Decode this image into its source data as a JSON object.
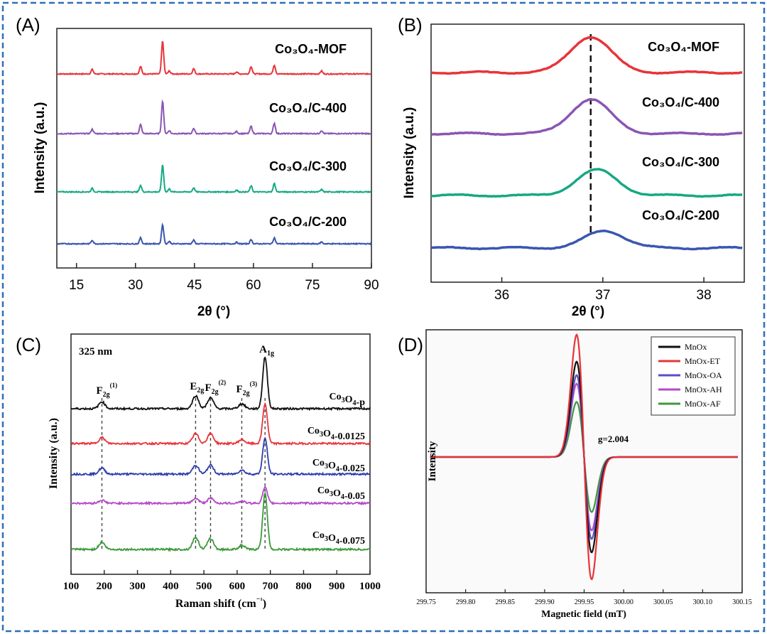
{
  "colors": {
    "frame": "#2f6fb7",
    "red": "#e8343a",
    "purple": "#8a55b5",
    "teal": "#17a884",
    "blue": "#3a56b0",
    "black": "#111111",
    "green": "#3c9a3a",
    "magenta": "#b449c7",
    "raman_blue": "#2d3cae",
    "epr_blue": "#5a4fc8"
  },
  "chart_data": [
    {
      "panel": "(A)",
      "type": "line",
      "xlabel": "2θ (°)",
      "ylabel": "Intensity (a.u.)",
      "xlim": [
        10,
        90
      ],
      "xticks": [
        15,
        30,
        45,
        60,
        75,
        90
      ],
      "grid": false,
      "peaks": [
        19,
        31.3,
        36.9,
        38.6,
        44.8,
        55.7,
        59.4,
        65.3,
        77.3
      ],
      "series": [
        {
          "name": "Co₃O₄-MOF",
          "color": "red",
          "heights": [
            1.5,
            2.5,
            11,
            1,
            1.8,
            0.7,
            2.5,
            3,
            1
          ]
        },
        {
          "name": "Co₃O₄/C-400",
          "color": "purple",
          "heights": [
            1.5,
            3,
            11,
            1,
            1.8,
            0.7,
            2.5,
            3.5,
            1
          ]
        },
        {
          "name": "Co₃O₄/C-300",
          "color": "teal",
          "heights": [
            1.2,
            2.2,
            9,
            1,
            1.4,
            0.6,
            2,
            2.8,
            0.8
          ]
        },
        {
          "name": "Co₃O₄/C-200",
          "color": "blue",
          "heights": [
            1.2,
            2,
            6.5,
            0.8,
            1.2,
            0.5,
            1.4,
            2,
            0.6
          ]
        }
      ]
    },
    {
      "panel": "(B)",
      "type": "line",
      "xlabel": "2θ (°)",
      "ylabel": "Intensity (a.u.)",
      "xlim": [
        35.3,
        38.4
      ],
      "xticks": [
        36,
        37,
        38
      ],
      "reference_line_x": 36.88,
      "grid": false,
      "series": [
        {
          "name": "Co₃O₄-MOF",
          "color": "red",
          "peak_x": 36.88,
          "height": 2.1
        },
        {
          "name": "Co₃O₄/C-400",
          "color": "purple",
          "peak_x": 36.88,
          "height": 2.0
        },
        {
          "name": "Co₃O₄/C-300",
          "color": "teal",
          "peak_x": 36.94,
          "height": 1.5
        },
        {
          "name": "Co₃O₄/C-200",
          "color": "blue",
          "peak_x": 37.02,
          "height": 1.0
        }
      ]
    },
    {
      "panel": "(C)",
      "type": "line",
      "xlabel": "Raman shift (cm⁻¹)",
      "ylabel": "Intensity (a.u.)",
      "xlim": [
        100,
        1000
      ],
      "xticks": [
        100,
        200,
        300,
        400,
        500,
        600,
        700,
        800,
        900,
        1000
      ],
      "wavelength_label": "325 nm",
      "grid": false,
      "peak_labels": [
        {
          "base": "F",
          "sub": "2g",
          "sup": "(1)",
          "x": 193
        },
        {
          "base": "E",
          "sub": "2g",
          "sup": "",
          "x": 475
        },
        {
          "base": "F",
          "sub": "2g",
          "sup": "(2)",
          "x": 520
        },
        {
          "base": "F",
          "sub": "2g",
          "sup": "(3)",
          "x": 614
        },
        {
          "base": "A",
          "sub": "1g",
          "sup": "",
          "x": 684
        }
      ],
      "peaks": [
        193,
        475,
        520,
        614,
        684
      ],
      "series": [
        {
          "base": "Co",
          "sub1": "3",
          "mid": "O",
          "sub2": "4",
          "suffix": "-p",
          "color": "black",
          "heights": [
            0.35,
            0.65,
            0.55,
            0.25,
            2.6
          ]
        },
        {
          "base": "Co",
          "sub1": "3",
          "mid": "O",
          "sub2": "4",
          "suffix": "-0.0125",
          "color": "red",
          "heights": [
            0.3,
            0.5,
            0.5,
            0.2,
            2.0
          ]
        },
        {
          "base": "Co",
          "sub1": "3",
          "mid": "O",
          "sub2": "4",
          "suffix": "-0.025",
          "color": "raman_blue",
          "heights": [
            0.3,
            0.45,
            0.45,
            0.2,
            1.8
          ]
        },
        {
          "base": "Co",
          "sub1": "3",
          "mid": "O",
          "sub2": "4",
          "suffix": "-0.05",
          "color": "magenta",
          "heights": [
            0.15,
            0.25,
            0.25,
            0.1,
            0.8
          ]
        },
        {
          "base": "Co",
          "sub1": "3",
          "mid": "O",
          "sub2": "4",
          "suffix": "-0.075",
          "color": "green",
          "heights": [
            0.35,
            0.6,
            0.55,
            0.2,
            2.8
          ]
        }
      ]
    },
    {
      "panel": "(D)",
      "type": "line",
      "xlabel": "Magnetic field (mT)",
      "ylabel": "Intensity",
      "xlim": [
        299.75,
        300.15
      ],
      "xticks": [
        "299.75",
        "299.80",
        "299.85",
        "299.90",
        "299.95",
        "300.00",
        "300.05",
        "300.10",
        "300.15"
      ],
      "annotation": "g=2.004",
      "center_field": 299.95,
      "grid": false,
      "legend_position": "top-right",
      "series": [
        {
          "name": "MnOx",
          "color": "black",
          "amplitude": 0.78
        },
        {
          "name": "MnOx-ET",
          "color": "red",
          "amplitude": 1.0
        },
        {
          "name": "MnOx-OA",
          "color": "epr_blue",
          "amplitude": 0.67
        },
        {
          "name": "MnOx-AH",
          "color": "magenta",
          "amplitude": 0.6
        },
        {
          "name": "MnOx-AF",
          "color": "green",
          "amplitude": 0.45
        }
      ]
    }
  ]
}
